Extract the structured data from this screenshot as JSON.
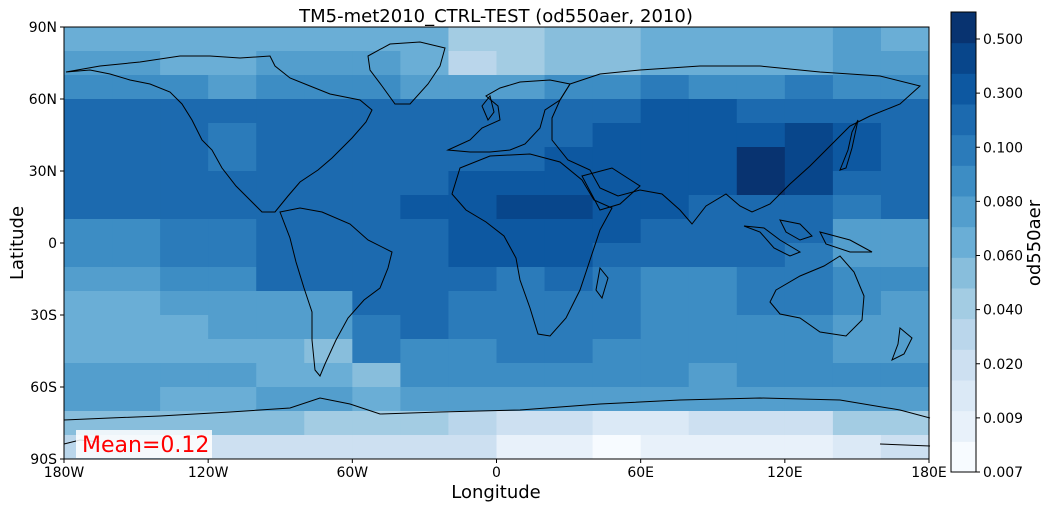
{
  "chart_data": {
    "type": "heatmap",
    "title": "TM5-met2010_CTRL-TEST (od550aer, 2010)",
    "xlabel": "Longitude",
    "ylabel": "Latitude",
    "xlim": [
      -180,
      180
    ],
    "ylim": [
      -90,
      90
    ],
    "x_ticks": [
      {
        "value": -180,
        "label": "180W"
      },
      {
        "value": -120,
        "label": "120W"
      },
      {
        "value": -60,
        "label": "60W"
      },
      {
        "value": 0,
        "label": "0"
      },
      {
        "value": 60,
        "label": "60E"
      },
      {
        "value": 120,
        "label": "120E"
      },
      {
        "value": 180,
        "label": "180E"
      }
    ],
    "y_ticks": [
      {
        "value": 90,
        "label": "90N"
      },
      {
        "value": 60,
        "label": "60N"
      },
      {
        "value": 30,
        "label": "30N"
      },
      {
        "value": 0,
        "label": "0"
      },
      {
        "value": -30,
        "label": "30S"
      },
      {
        "value": -60,
        "label": "60S"
      },
      {
        "value": -90,
        "label": "90S"
      }
    ],
    "cell_size_deg": [
      20,
      10
    ],
    "lat_rows": [
      90,
      80,
      70,
      60,
      50,
      40,
      30,
      20,
      10,
      0,
      -10,
      -20,
      -30,
      -40,
      -50,
      -60,
      -70,
      -80
    ],
    "lon_cols": [
      -180,
      -160,
      -140,
      -120,
      -100,
      -80,
      -60,
      -40,
      -20,
      0,
      20,
      40,
      60,
      80,
      100,
      120,
      140,
      160
    ],
    "colorbar": {
      "label": "od550aer",
      "tick_labels": [
        "0.007",
        "0.009",
        "0.020",
        "0.040",
        "0.060",
        "0.080",
        "0.100",
        "0.300",
        "0.500"
      ],
      "colors": [
        "#f7fbff",
        "#e8f1fa",
        "#dbe9f6",
        "#cde0f1",
        "#bad6eb",
        "#a3cce3",
        "#88bedc",
        "#6aaed6",
        "#539ecd",
        "#3d8dc4",
        "#2b7bba",
        "#1c6aaf",
        "#0d58a1",
        "#08468b",
        "#083370"
      ]
    },
    "grid_levels": [
      [
        7,
        7,
        7,
        7,
        7,
        7,
        7,
        7,
        5,
        5,
        6,
        6,
        7,
        7,
        7,
        7,
        8,
        7
      ],
      [
        8,
        8,
        7,
        7,
        8,
        8,
        8,
        7,
        4,
        5,
        6,
        6,
        7,
        7,
        7,
        7,
        8,
        8
      ],
      [
        9,
        9,
        9,
        8,
        9,
        9,
        9,
        8,
        8,
        8,
        9,
        9,
        10,
        9,
        9,
        10,
        9,
        9
      ],
      [
        11,
        11,
        11,
        11,
        11,
        11,
        11,
        11,
        11,
        11,
        11,
        11,
        12,
        12,
        11,
        11,
        11,
        11
      ],
      [
        11,
        11,
        11,
        10,
        11,
        11,
        11,
        11,
        11,
        11,
        11,
        12,
        12,
        12,
        12,
        13,
        12,
        11
      ],
      [
        11,
        11,
        11,
        10,
        11,
        11,
        11,
        11,
        11,
        11,
        12,
        12,
        12,
        12,
        14,
        13,
        12,
        11
      ],
      [
        11,
        11,
        11,
        11,
        11,
        11,
        11,
        11,
        12,
        12,
        12,
        12,
        12,
        12,
        14,
        13,
        11,
        11
      ],
      [
        11,
        11,
        11,
        11,
        11,
        11,
        11,
        12,
        12,
        13,
        13,
        12,
        12,
        11,
        11,
        11,
        10,
        11
      ],
      [
        9,
        9,
        10,
        10,
        11,
        11,
        11,
        11,
        12,
        12,
        12,
        12,
        11,
        11,
        11,
        11,
        8,
        8
      ],
      [
        9,
        9,
        10,
        10,
        11,
        11,
        11,
        11,
        12,
        12,
        12,
        11,
        11,
        11,
        11,
        10,
        8,
        8
      ],
      [
        8,
        8,
        9,
        9,
        11,
        11,
        11,
        11,
        11,
        10,
        11,
        10,
        9,
        9,
        10,
        10,
        9,
        9
      ],
      [
        7,
        7,
        8,
        8,
        8,
        8,
        11,
        11,
        10,
        10,
        10,
        10,
        9,
        9,
        10,
        10,
        9,
        8
      ],
      [
        7,
        7,
        7,
        8,
        8,
        8,
        10,
        11,
        10,
        10,
        10,
        10,
        9,
        9,
        9,
        9,
        8,
        8
      ],
      [
        7,
        7,
        7,
        7,
        7,
        6,
        10,
        9,
        9,
        10,
        10,
        9,
        9,
        9,
        9,
        9,
        8,
        8
      ],
      [
        8,
        8,
        8,
        8,
        7,
        7,
        6,
        9,
        9,
        9,
        9,
        9,
        9,
        8,
        9,
        9,
        9,
        9
      ],
      [
        8,
        8,
        7,
        7,
        8,
        8,
        7,
        8,
        8,
        8,
        8,
        8,
        8,
        8,
        8,
        8,
        8,
        8
      ],
      [
        6,
        6,
        6,
        6,
        6,
        5,
        5,
        5,
        4,
        3,
        3,
        2,
        2,
        3,
        3,
        3,
        5,
        5
      ],
      [
        4,
        4,
        3,
        3,
        3,
        3,
        3,
        3,
        3,
        1,
        1,
        0,
        1,
        1,
        1,
        1,
        2,
        3
      ]
    ],
    "annotation": "Mean=0.12"
  }
}
